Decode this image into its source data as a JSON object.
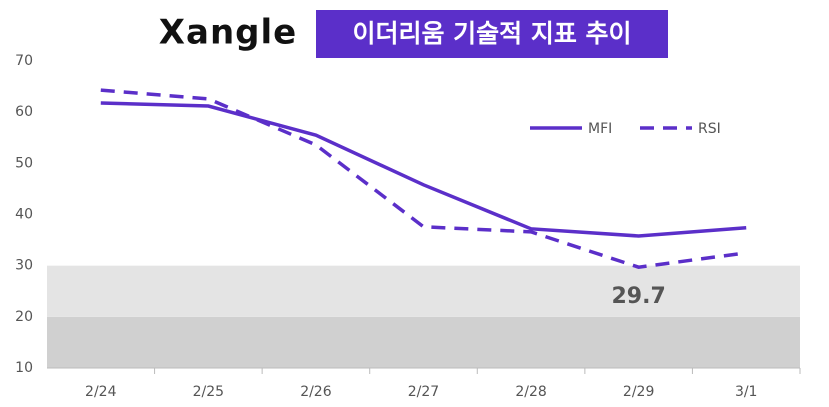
{
  "chart_data": {
    "type": "line",
    "logo": "Xangle",
    "title": "이더리움 기술적 지표 추이",
    "categories": [
      "2/24",
      "2/25",
      "2/26",
      "2/27",
      "2/28",
      "2/29",
      "3/1"
    ],
    "series": [
      {
        "name": "MFI",
        "color": "#5b2fc9",
        "dash": false,
        "values": [
          61.8,
          61.2,
          55.5,
          45.8,
          37.2,
          35.8,
          37.4
        ]
      },
      {
        "name": "RSI",
        "color": "#5b2fc9",
        "dash": true,
        "values": [
          64.3,
          62.6,
          53.6,
          37.6,
          36.6,
          29.7,
          32.5
        ],
        "value_labels": [
          null,
          null,
          null,
          null,
          null,
          "29.7",
          null
        ]
      }
    ],
    "bands": [
      {
        "from": 10,
        "to": 20,
        "color": "#d0d0d0"
      },
      {
        "from": 20,
        "to": 30,
        "color": "#e4e4e4"
      }
    ],
    "ylim": [
      10,
      70
    ],
    "yticks": [
      10,
      20,
      30,
      40,
      50,
      60,
      70
    ],
    "grid": false,
    "legend": "upper-right"
  }
}
